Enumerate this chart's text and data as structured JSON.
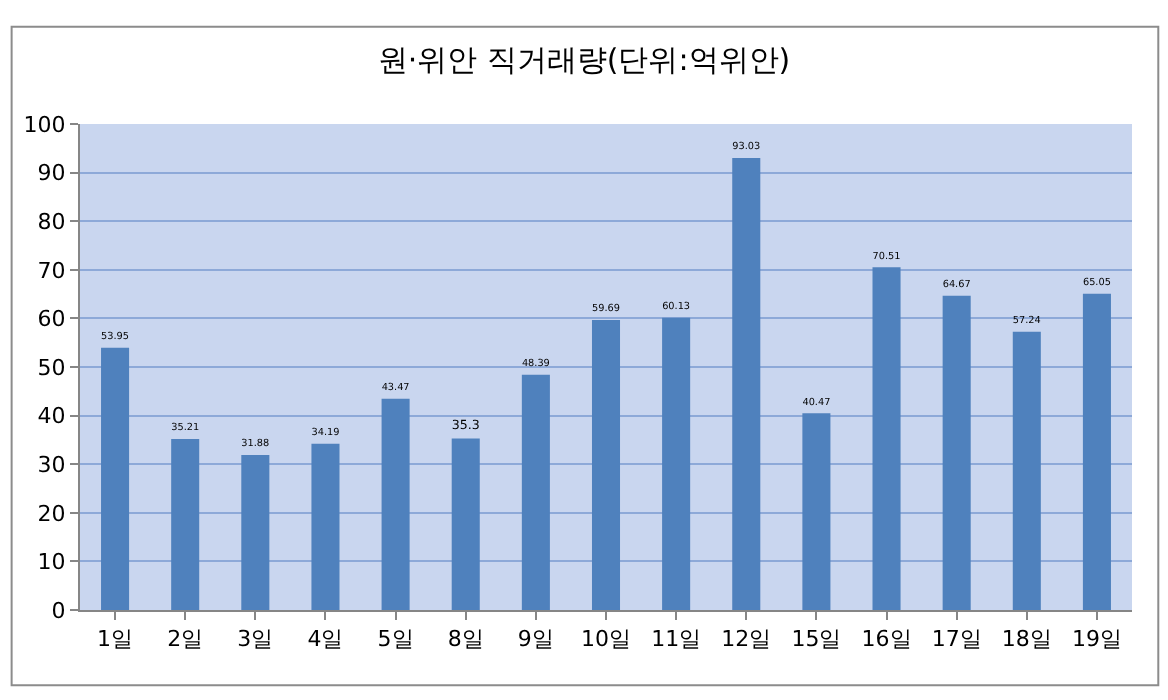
{
  "chart_data": {
    "type": "bar",
    "title": "원·위안 직거래량(단위:억위안)",
    "categories": [
      "1일",
      "2일",
      "3일",
      "4일",
      "5일",
      "8일",
      "9일",
      "10일",
      "11일",
      "12일",
      "15일",
      "16일",
      "17일",
      "18일",
      "19일"
    ],
    "values": [
      53.95,
      35.21,
      31.88,
      34.19,
      43.47,
      35.3,
      48.39,
      59.69,
      60.13,
      93.03,
      40.47,
      70.51,
      64.67,
      57.24,
      65.05
    ],
    "color": "#4f81bd",
    "ylim": [
      0,
      100
    ],
    "yticks": [
      0,
      10,
      20,
      30,
      40,
      50,
      60,
      70,
      80,
      90,
      100
    ],
    "grid": "y",
    "data_labels": true,
    "legend": false
  }
}
